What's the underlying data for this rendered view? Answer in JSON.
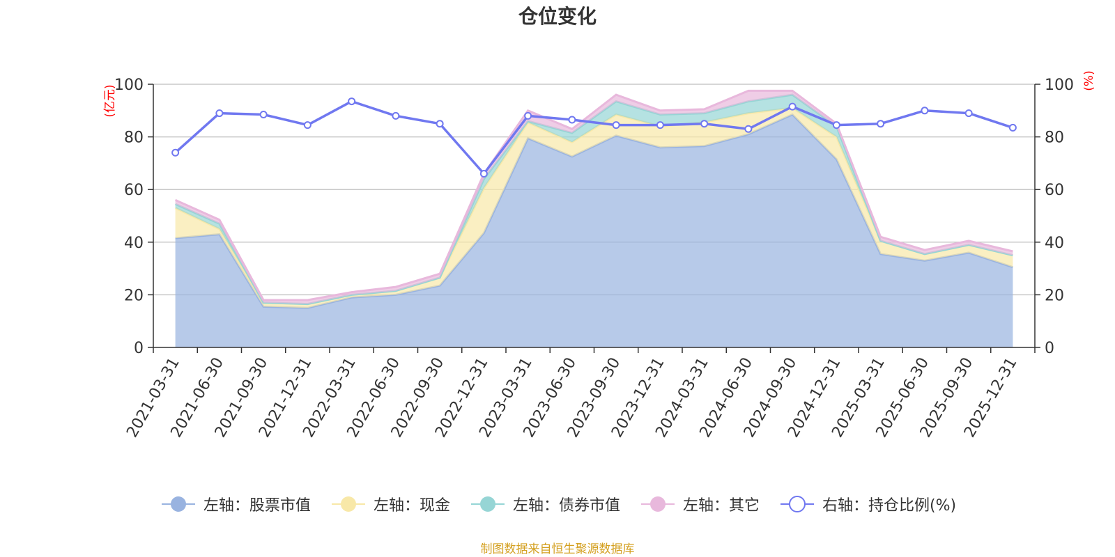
{
  "chart_data": {
    "type": "area",
    "title": "仓位变化",
    "left_axis_label": "(亿元)",
    "right_axis_label": "(%)",
    "left_ylim": [
      0,
      100
    ],
    "right_ylim": [
      0,
      100
    ],
    "left_ticks": [
      "0",
      "20",
      "40",
      "60",
      "80",
      "100"
    ],
    "right_ticks": [
      "0",
      "20",
      "40",
      "60",
      "80",
      "100"
    ],
    "grid": true,
    "categories": [
      "2021-03-31",
      "2021-06-30",
      "2021-09-30",
      "2021-12-31",
      "2022-03-31",
      "2022-06-30",
      "2022-09-30",
      "2022-12-31",
      "2023-03-31",
      "2023-06-30",
      "2023-09-30",
      "2023-12-31",
      "2024-03-31",
      "2024-06-30",
      "2024-09-30",
      "2024-12-31",
      "2025-03-31",
      "2025-06-30",
      "2025-09-30",
      "2025-12-31"
    ],
    "series": [
      {
        "name": "左轴：股票市值",
        "axis": "left",
        "stack": true,
        "color": "#99b3e0",
        "values": [
          41.5,
          43.0,
          15.5,
          15.0,
          19.0,
          20.0,
          23.5,
          43.5,
          79.5,
          72.5,
          80.5,
          76.0,
          76.5,
          81.0,
          88.5,
          71.5,
          35.5,
          33.0,
          36.0,
          30.5
        ]
      },
      {
        "name": "左轴：现金",
        "axis": "left",
        "stack": true,
        "color": "#f8e8a8",
        "values": [
          11.5,
          2.0,
          1.5,
          1.5,
          1.0,
          1.5,
          3.0,
          17.0,
          6.0,
          5.5,
          8.0,
          8.0,
          9.0,
          8.0,
          2.5,
          8.5,
          5.0,
          2.5,
          3.0,
          4.5
        ]
      },
      {
        "name": "左轴：债券市值",
        "axis": "left",
        "stack": true,
        "color": "#96d5d5",
        "values": [
          1.5,
          2.0,
          0.0,
          0.0,
          0.0,
          0.0,
          0.0,
          3.5,
          0.5,
          3.5,
          5.0,
          4.5,
          3.5,
          4.5,
          5.0,
          4.0,
          0.0,
          0.0,
          0.0,
          0.0
        ]
      },
      {
        "name": "左轴：其它",
        "axis": "left",
        "stack": true,
        "color": "#e8b8dc",
        "values": [
          1.5,
          1.5,
          1.0,
          1.5,
          1.0,
          1.5,
          1.5,
          2.0,
          4.0,
          1.5,
          2.5,
          1.5,
          1.5,
          4.0,
          1.5,
          1.0,
          1.5,
          1.5,
          1.5,
          1.5
        ]
      },
      {
        "name": "右轴：持仓比例(%)",
        "axis": "right",
        "stack": false,
        "color": "#7078f0",
        "values": [
          74.0,
          89.0,
          88.5,
          84.5,
          93.5,
          88.0,
          85.0,
          66.0,
          88.0,
          86.5,
          84.5,
          84.5,
          85.0,
          83.0,
          91.5,
          84.5,
          85.0,
          90.0,
          89.0,
          83.5
        ]
      }
    ],
    "legend_position": "bottom-center",
    "source_note": "制图数据来自恒生聚源数据库"
  }
}
